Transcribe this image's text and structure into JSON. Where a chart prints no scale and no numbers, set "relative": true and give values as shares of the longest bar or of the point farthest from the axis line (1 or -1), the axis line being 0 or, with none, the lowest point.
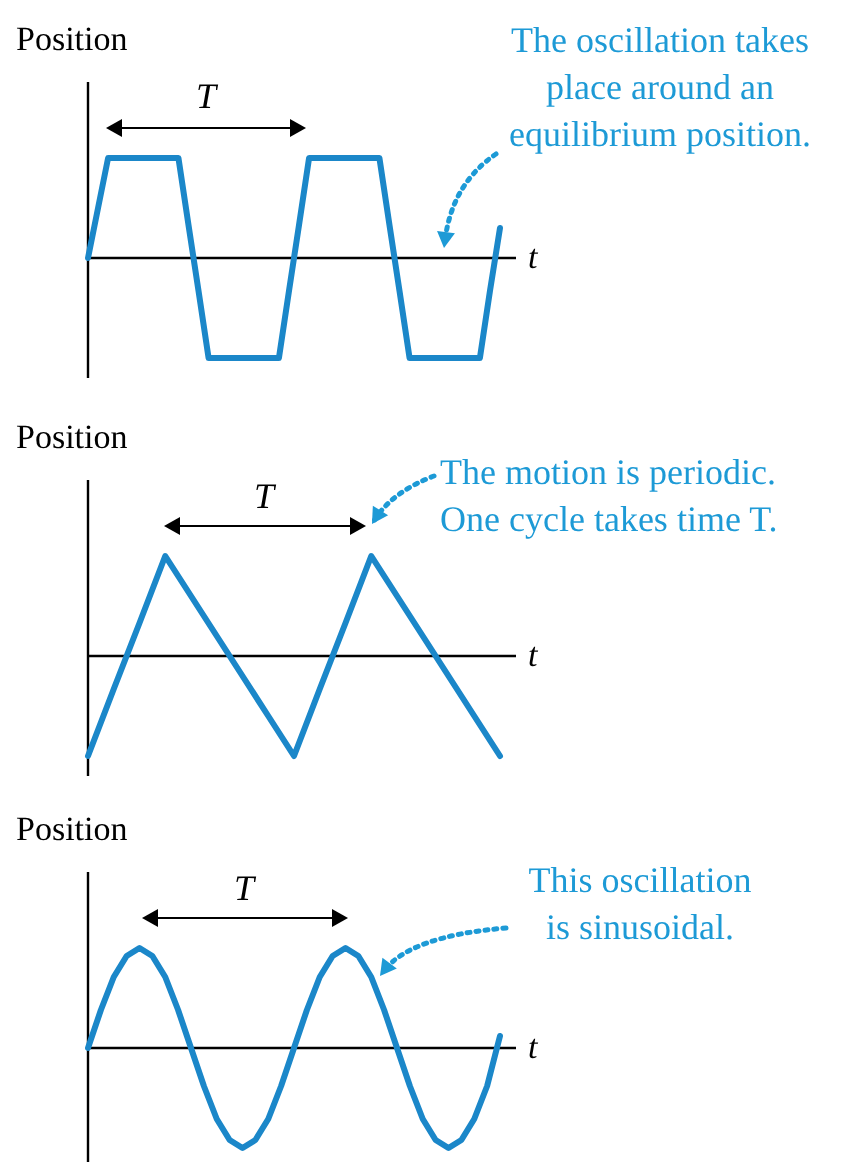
{
  "chart_data": [
    {
      "type": "line",
      "ylabel": "Position",
      "xlabel": "t",
      "relative": true,
      "categories": [
        null,
        null,
        null,
        null,
        null,
        null,
        null,
        null,
        null,
        null,
        null,
        null,
        null,
        null,
        null,
        null,
        null,
        null,
        null,
        null,
        null,
        null,
        null,
        null,
        null,
        null,
        null,
        null,
        null,
        null,
        null,
        null,
        null,
        null,
        null,
        null,
        null,
        null,
        null,
        null,
        null,
        null
      ],
      "series": [
        {
          "color": "#1b87c9",
          "values": [
            0,
            0.5,
            1,
            1,
            1,
            1,
            1,
            1,
            1,
            1,
            0.33,
            -0.33,
            -1,
            -1,
            -1,
            -1,
            -1,
            -1,
            -1,
            -1,
            -0.33,
            0.33,
            1,
            1,
            1,
            1,
            1,
            1,
            1,
            1,
            0.33,
            -0.33,
            -1,
            -1,
            -1,
            -1,
            -1,
            -1,
            -1,
            -1,
            -0.33,
            0.3
          ]
        }
      ],
      "annotations": [
        "T",
        "The oscillation takes\nplace around an\nequilibrium position."
      ]
    },
    {
      "type": "line",
      "ylabel": "Position",
      "xlabel": "t",
      "relative": true,
      "categories": [
        null,
        null,
        null,
        null,
        null,
        null,
        null,
        null,
        null,
        null,
        null,
        null,
        null,
        null,
        null,
        null,
        null
      ],
      "series": [
        {
          "color": "#1b87c9",
          "values": [
            -1,
            -0.33,
            0.33,
            1,
            0.6,
            0.2,
            -0.2,
            -0.6,
            -1,
            -0.33,
            0.33,
            1,
            0.6,
            0.2,
            -0.2,
            -0.6,
            -1
          ]
        }
      ],
      "annotations": [
        "T",
        "The motion is periodic.\nOne cycle takes time T."
      ]
    },
    {
      "type": "line",
      "ylabel": "Position",
      "xlabel": "t",
      "relative": true,
      "categories": [
        null,
        null,
        null,
        null,
        null,
        null,
        null,
        null,
        null,
        null,
        null,
        null,
        null,
        null,
        null,
        null,
        null,
        null,
        null,
        null,
        null,
        null,
        null,
        null,
        null,
        null,
        null,
        null,
        null,
        null,
        null,
        null,
        null
      ],
      "series": [
        {
          "color": "#1b87c9",
          "values": [
            0,
            0.38,
            0.71,
            0.92,
            1,
            0.92,
            0.71,
            0.38,
            0,
            -0.38,
            -0.71,
            -0.92,
            -1,
            -0.92,
            -0.71,
            -0.38,
            0,
            0.38,
            0.71,
            0.92,
            1,
            0.92,
            0.71,
            0.38,
            0,
            -0.38,
            -0.71,
            -0.92,
            -1,
            -0.92,
            -0.71,
            -0.38,
            0.12
          ]
        }
      ],
      "annotations": [
        "T",
        "This oscillation\nis sinusoidal."
      ]
    }
  ]
}
